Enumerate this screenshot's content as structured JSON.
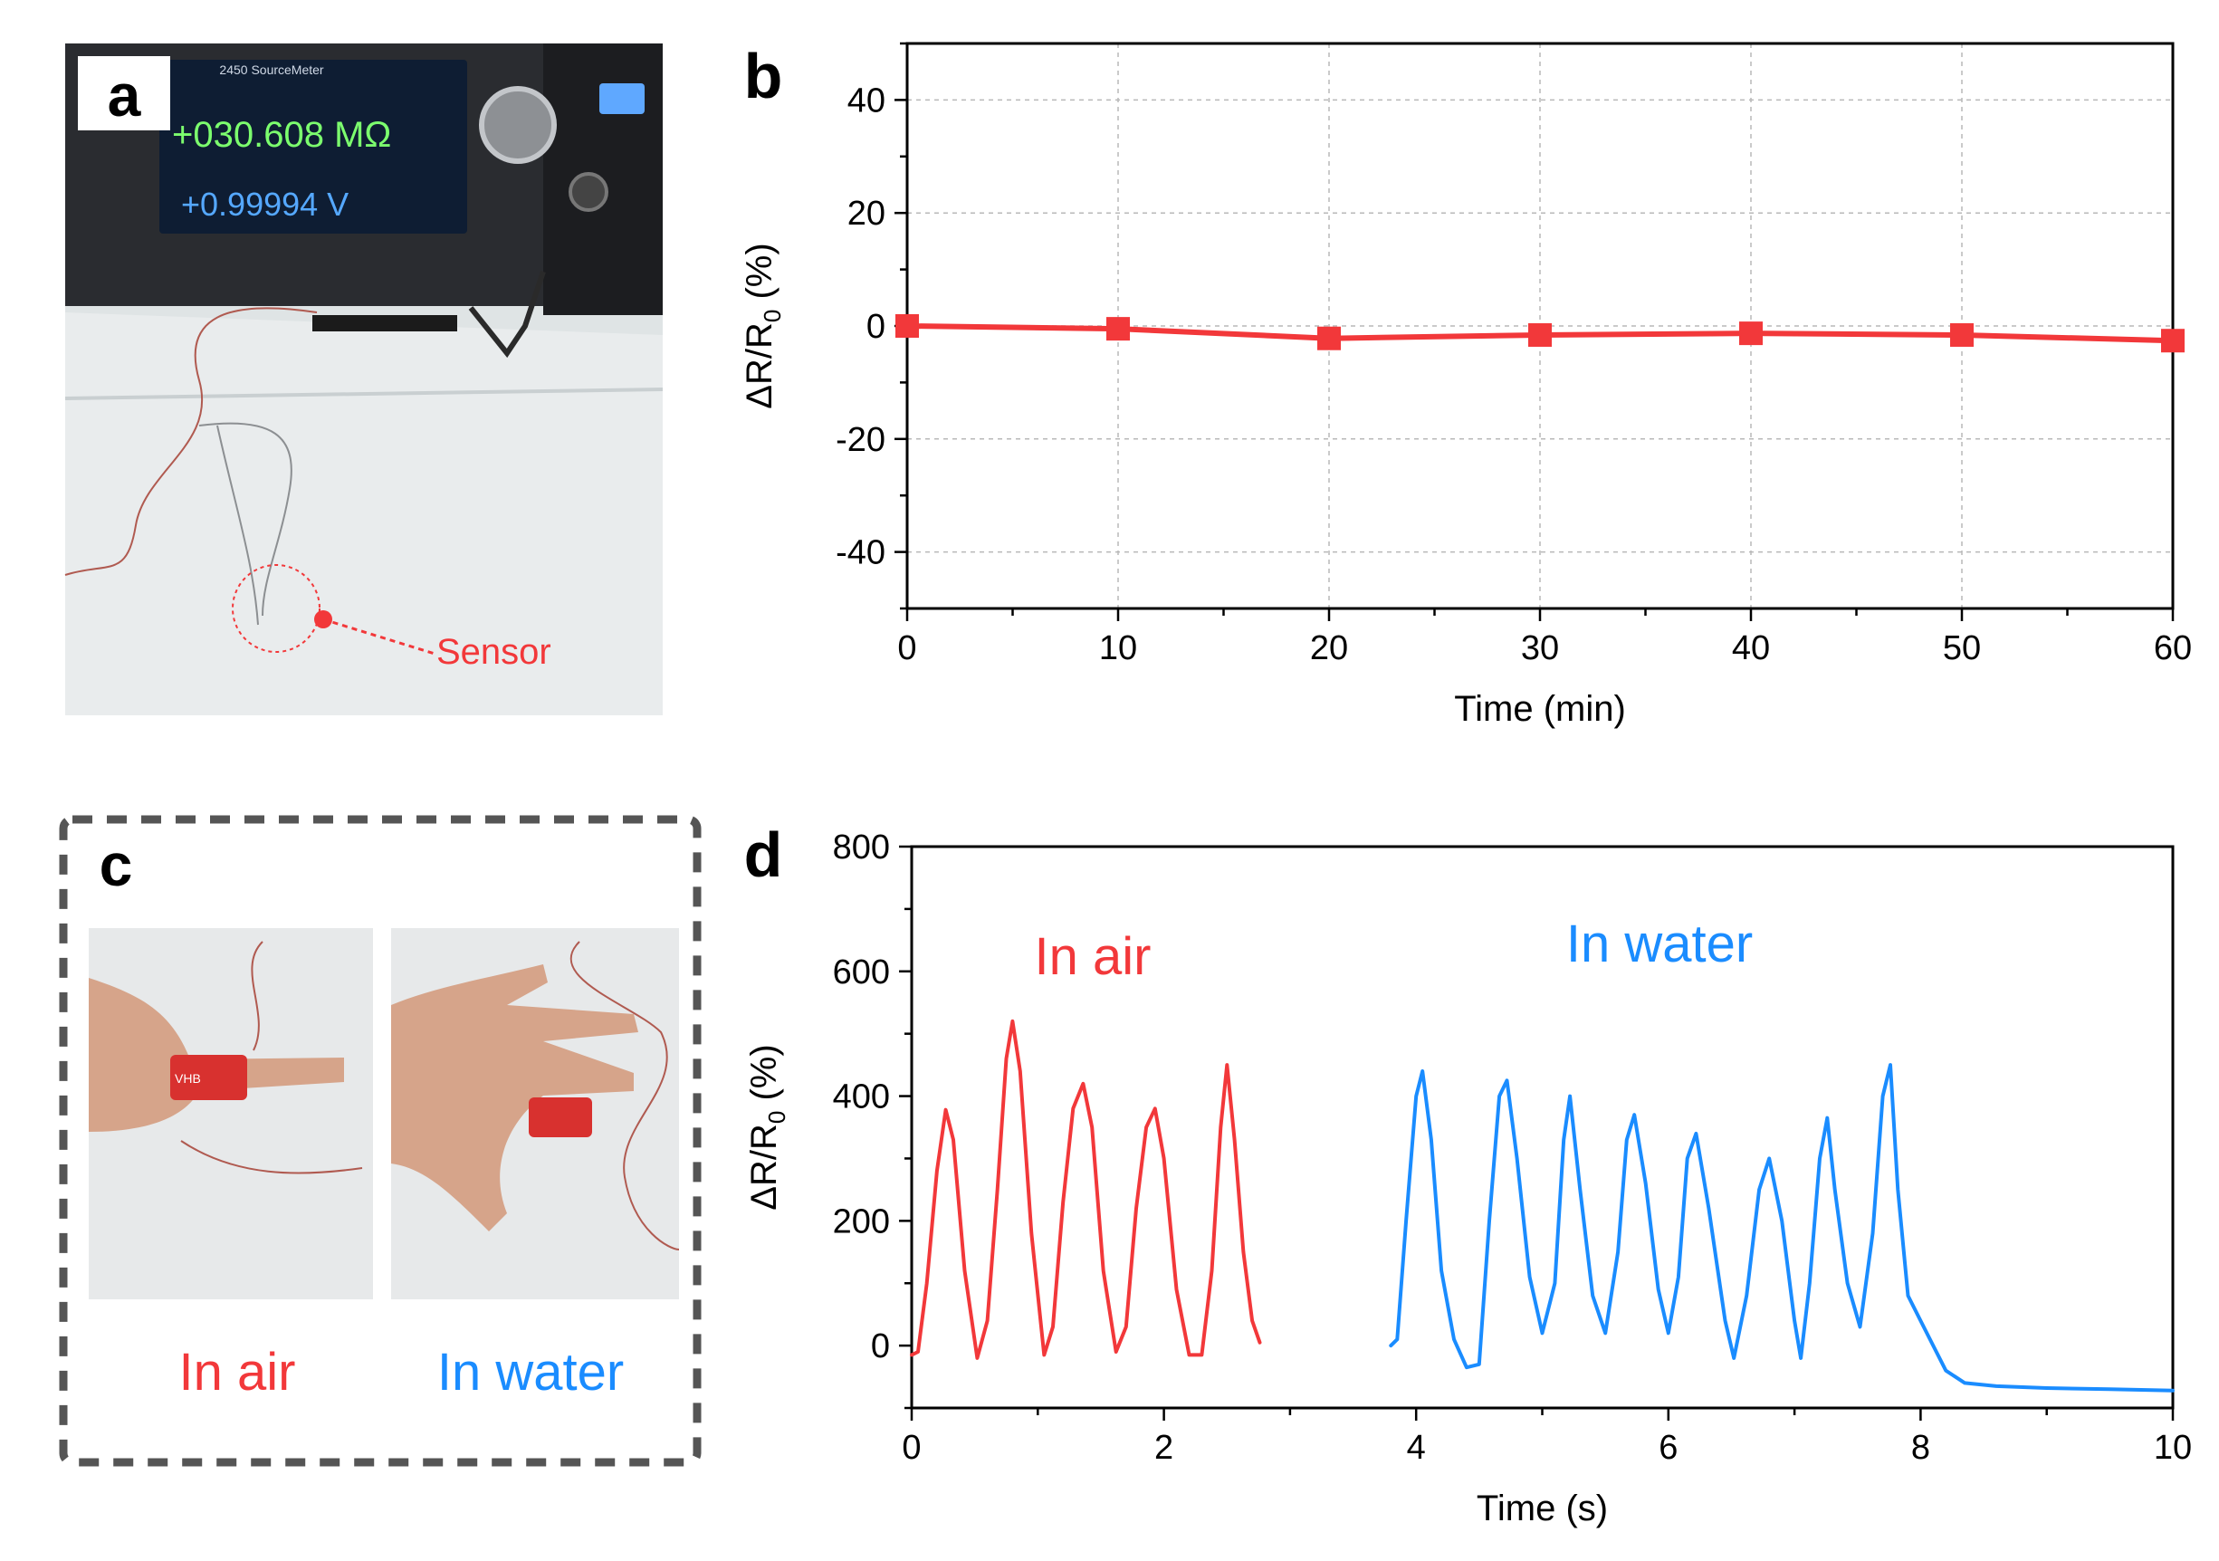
{
  "panels": {
    "a": {
      "letter": "a",
      "display_resistance": "+030.608 MΩ",
      "display_voltage": "+0.99994 V",
      "instrument_model": "2450 SourceMeter",
      "sensor_label": "Sensor"
    },
    "b": {
      "letter": "b"
    },
    "c": {
      "letter": "c",
      "caption_air": "In air",
      "caption_water": "In water",
      "tape_text": "VHB"
    },
    "d": {
      "letter": "d",
      "label_air": "In air",
      "label_water": "In water"
    }
  },
  "colors": {
    "red": "#f2383a",
    "blue": "#1a8cff",
    "dashed_frame": "#555555",
    "display_green": "#7cff6e",
    "display_blue": "#55a8ff"
  },
  "chart_data": [
    {
      "id": "b",
      "type": "line",
      "title": "",
      "xlabel": "Time (min)",
      "ylabel": "ΔR/R",
      "ylabel_sub": "0",
      "ylabel_unit": " (%)",
      "xlim": [
        0,
        60
      ],
      "ylim": [
        -50,
        50
      ],
      "xticks": [
        0,
        10,
        20,
        30,
        40,
        50,
        60
      ],
      "yticks": [
        -40,
        -20,
        0,
        20,
        40
      ],
      "grid": true,
      "series": [
        {
          "color": "#f2383a",
          "marker": "square",
          "x": [
            0,
            10,
            20,
            30,
            40,
            50,
            60
          ],
          "y": [
            0,
            -0.5,
            -2.2,
            -1.6,
            -1.3,
            -1.6,
            -2.6
          ]
        }
      ]
    },
    {
      "id": "d",
      "type": "line",
      "title": "",
      "xlabel": "Time (s)",
      "ylabel": "ΔR/R",
      "ylabel_sub": "0",
      "ylabel_unit": " (%)",
      "xlim": [
        0,
        10
      ],
      "ylim": [
        -100,
        800
      ],
      "xticks": [
        0,
        2,
        4,
        6,
        8,
        10
      ],
      "yticks": [
        0,
        200,
        400,
        600,
        800
      ],
      "grid": false,
      "series": [
        {
          "name": "In air",
          "color": "#f2383a",
          "x": [
            0.0,
            0.05,
            0.12,
            0.2,
            0.27,
            0.33,
            0.42,
            0.52,
            0.6,
            0.68,
            0.75,
            0.8,
            0.86,
            0.95,
            1.05,
            1.12,
            1.2,
            1.28,
            1.36,
            1.43,
            1.52,
            1.62,
            1.7,
            1.78,
            1.86,
            1.93,
            2.0,
            2.1,
            2.2,
            2.3,
            2.38,
            2.45,
            2.5,
            2.56,
            2.63,
            2.7,
            2.76
          ],
          "y": [
            -15,
            -10,
            100,
            280,
            378,
            330,
            120,
            -20,
            40,
            250,
            460,
            520,
            440,
            180,
            -15,
            30,
            230,
            380,
            420,
            350,
            120,
            -10,
            30,
            220,
            350,
            380,
            300,
            90,
            -15,
            -15,
            120,
            350,
            450,
            330,
            150,
            40,
            5
          ]
        },
        {
          "name": "In water",
          "color": "#1a8cff",
          "x": [
            3.8,
            3.85,
            3.92,
            4.0,
            4.05,
            4.12,
            4.2,
            4.3,
            4.4,
            4.5,
            4.58,
            4.66,
            4.72,
            4.8,
            4.9,
            5.0,
            5.1,
            5.17,
            5.22,
            5.3,
            5.4,
            5.5,
            5.6,
            5.67,
            5.73,
            5.82,
            5.92,
            6.0,
            6.08,
            6.15,
            6.22,
            6.32,
            6.45,
            6.52,
            6.62,
            6.72,
            6.8,
            6.9,
            7.0,
            7.05,
            7.12,
            7.2,
            7.26,
            7.32,
            7.42,
            7.52,
            7.62,
            7.7,
            7.76,
            7.82,
            7.9,
            8.0,
            8.1,
            8.2,
            8.35,
            8.6,
            9.0,
            9.5,
            10.0
          ],
          "y": [
            0,
            10,
            200,
            400,
            440,
            330,
            120,
            10,
            -35,
            -30,
            200,
            400,
            425,
            300,
            110,
            20,
            100,
            330,
            400,
            250,
            80,
            20,
            150,
            330,
            370,
            260,
            90,
            20,
            110,
            300,
            340,
            220,
            40,
            -20,
            80,
            250,
            300,
            200,
            40,
            -20,
            100,
            300,
            365,
            250,
            100,
            30,
            180,
            400,
            450,
            250,
            80,
            40,
            0,
            -40,
            -60,
            -65,
            -68,
            -70,
            -72
          ]
        }
      ],
      "annotations": [
        "In air",
        "In water"
      ]
    }
  ]
}
